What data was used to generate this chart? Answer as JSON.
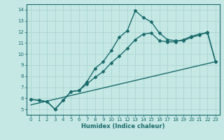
{
  "title": "",
  "xlabel": "Humidex (Indice chaleur)",
  "xlim": [
    -0.5,
    23.5
  ],
  "ylim": [
    4.5,
    14.5
  ],
  "xticks": [
    0,
    1,
    2,
    3,
    4,
    5,
    6,
    7,
    8,
    9,
    10,
    11,
    12,
    13,
    14,
    15,
    16,
    17,
    18,
    19,
    20,
    21,
    22,
    23
  ],
  "yticks": [
    5,
    6,
    7,
    8,
    9,
    10,
    11,
    12,
    13,
    14
  ],
  "bg_color": "#c5e8e5",
  "grid_color": "#aad4d0",
  "line_color": "#1a6b6b",
  "line1_x": [
    0,
    1,
    2,
    3,
    4,
    5,
    6,
    7,
    8,
    9,
    10,
    11,
    12,
    13,
    14,
    15,
    16,
    17,
    18,
    19,
    20,
    21,
    22,
    23
  ],
  "line1_y": [
    5.9,
    5.8,
    5.7,
    5.0,
    5.8,
    6.6,
    6.7,
    7.5,
    8.7,
    9.3,
    10.3,
    11.5,
    12.1,
    13.9,
    13.3,
    12.9,
    11.9,
    11.3,
    11.2,
    11.2,
    11.5,
    11.7,
    12.0,
    9.3
  ],
  "line2_x": [
    0,
    1,
    2,
    3,
    4,
    5,
    6,
    7,
    8,
    9,
    10,
    11,
    12,
    13,
    14,
    15,
    16,
    17,
    18,
    19,
    20,
    21,
    22,
    23
  ],
  "line2_y": [
    5.9,
    5.8,
    5.7,
    5.0,
    5.8,
    6.6,
    6.7,
    7.3,
    7.9,
    8.4,
    9.2,
    9.8,
    10.5,
    11.3,
    11.8,
    11.9,
    11.2,
    11.1,
    11.1,
    11.3,
    11.6,
    11.8,
    11.9,
    9.3
  ],
  "line3_x": [
    0,
    23
  ],
  "line3_y": [
    5.4,
    9.3
  ],
  "marker": "D",
  "markersize": 2.0,
  "linewidth": 1.0
}
